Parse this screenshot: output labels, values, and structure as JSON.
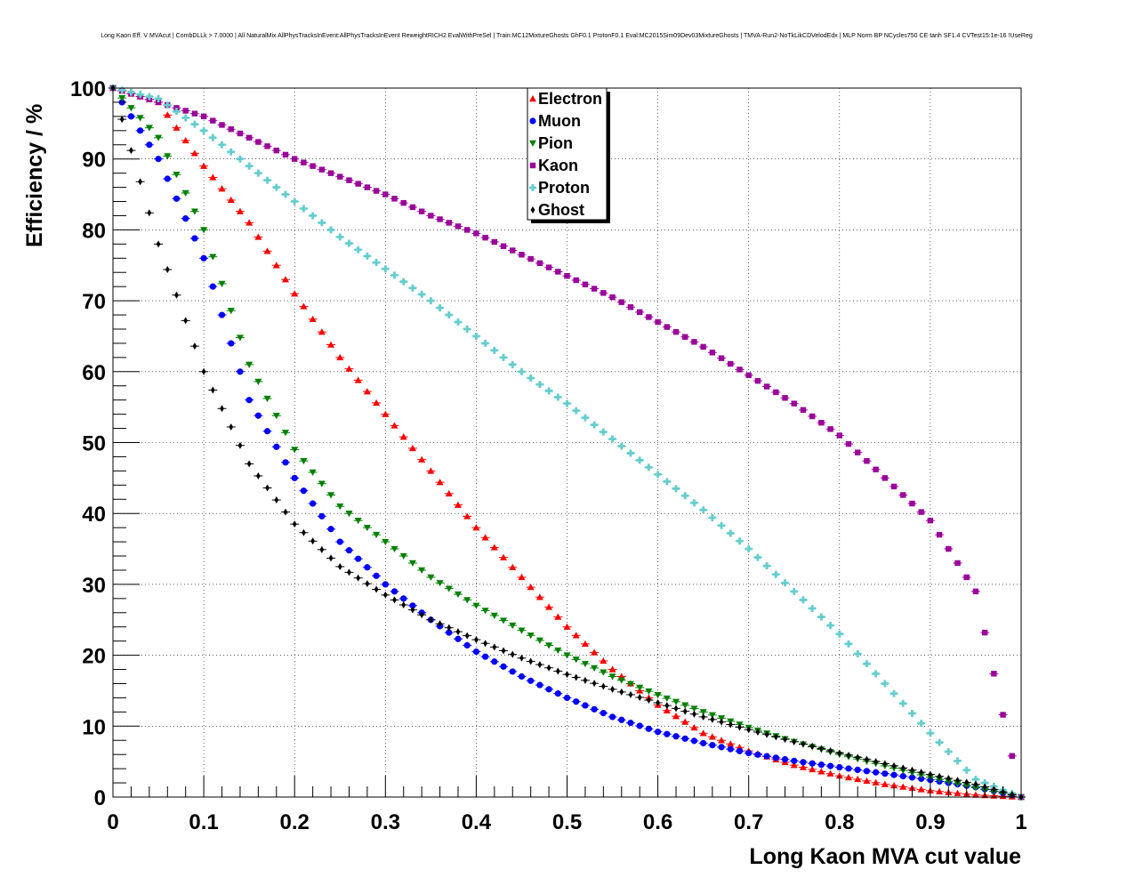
{
  "chart_data": {
    "type": "scatter",
    "title": "Long Kaon Eff. V MVAcut | CombDLLk > 7.0000 | All NaturalMix AllPhysTracksInEvent:AllPhysTracksInEvent ReweightRICH2 EvalWithPreSel | Train:MC12MixtureGhosts GhF0.1 ProtonF0.1 Eval:MC2015Sim09Dev03MixtureGhosts | TMVA-Run2-NoTkLikCDVelodEdx | MLP Norm BP NCycles750 CE tanh SF1.4 CVTest15:1e-16 !UseReg",
    "xlabel": "Long Kaon MVA cut value",
    "ylabel": "Efficiency / %",
    "xlim": [
      0,
      1
    ],
    "ylim": [
      0,
      100
    ],
    "x_ticks": [
      "0",
      "0.1",
      "0.2",
      "0.3",
      "0.4",
      "0.5",
      "0.6",
      "0.7",
      "0.8",
      "0.9",
      "1"
    ],
    "y_ticks": [
      "0",
      "10",
      "20",
      "30",
      "40",
      "50",
      "60",
      "70",
      "80",
      "90",
      "100"
    ],
    "grid": true,
    "legend_position": "top-center",
    "x": [
      0.0,
      0.05,
      0.1,
      0.15,
      0.2,
      0.25,
      0.3,
      0.35,
      0.4,
      0.45,
      0.5,
      0.55,
      0.6,
      0.65,
      0.7,
      0.75,
      0.8,
      0.85,
      0.9,
      0.95,
      1.0
    ],
    "series": [
      {
        "name": "Electron",
        "color": "#ff0000",
        "marker": "triangle-up",
        "values": [
          100,
          98,
          89,
          81,
          71,
          62,
          54,
          46,
          38,
          31,
          24,
          18,
          13,
          9,
          6.5,
          4.5,
          3,
          1.8,
          0.9,
          0.3,
          0
        ]
      },
      {
        "name": "Muon",
        "color": "#0000ff",
        "marker": "circle",
        "values": [
          100,
          90,
          76,
          56,
          45,
          36,
          30,
          25,
          20.5,
          17,
          14,
          11.3,
          9.2,
          7.6,
          6.2,
          5.1,
          4.2,
          3.3,
          2.4,
          1.4,
          0
        ]
      },
      {
        "name": "Pion",
        "color": "#008000",
        "marker": "triangle-down",
        "values": [
          100,
          93,
          80,
          61,
          49,
          41,
          36,
          31,
          27,
          23.5,
          20,
          17,
          14.4,
          12,
          9.8,
          7.8,
          6,
          4.4,
          2.8,
          1.3,
          0
        ]
      },
      {
        "name": "Kaon",
        "color": "#990099",
        "marker": "square",
        "values": [
          100,
          98,
          96,
          93,
          90,
          87.5,
          85,
          82,
          79.5,
          76.5,
          73.5,
          70.5,
          67,
          63.5,
          59.5,
          55.5,
          51,
          45,
          39,
          29,
          0
        ]
      },
      {
        "name": "Proton",
        "color": "#66cccc",
        "marker": "cross",
        "values": [
          100,
          98.5,
          94,
          89,
          84,
          79,
          74.5,
          70,
          65,
          60,
          55.5,
          50.5,
          45.5,
          40.5,
          35,
          29,
          23,
          16,
          9,
          2.5,
          0
        ]
      },
      {
        "name": "Ghost",
        "color": "#000000",
        "marker": "diamond",
        "values": [
          100,
          78,
          60,
          47,
          38.5,
          32.5,
          28.5,
          25,
          22.2,
          19.6,
          17.3,
          15.2,
          13.3,
          11.3,
          9.5,
          7.8,
          6.2,
          4.7,
          3.2,
          1.8,
          0
        ]
      }
    ]
  }
}
